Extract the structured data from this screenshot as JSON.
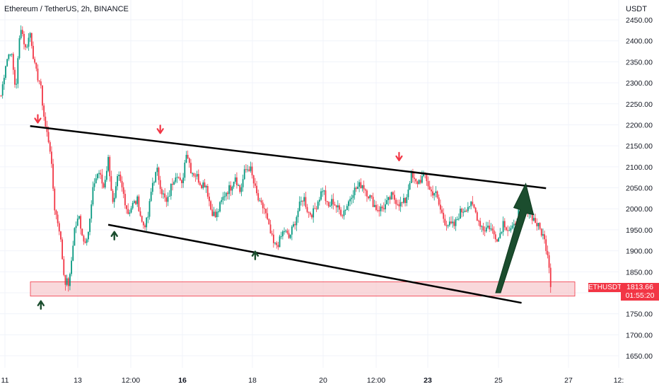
{
  "header": {
    "title": "Ethereum / TetherUS, 2h, BINANCE",
    "currency": "USDT"
  },
  "price_tag": {
    "symbol": "ETHUSDT",
    "price": "1813.66",
    "countdown": "01:55:20"
  },
  "colors": {
    "up": "#089981",
    "down": "#f23645",
    "zone_fill": "#f7c8cc",
    "zone_border": "#f23645",
    "trendline": "#000000",
    "arrow": "#1b4d2e"
  },
  "chart_data": {
    "type": "candlestick",
    "y_axis": {
      "range": [
        1625,
        2460
      ],
      "ticks": [
        1650,
        1700,
        1750,
        1800,
        1850,
        1900,
        1950,
        2000,
        2050,
        2100,
        2150,
        2200,
        2250,
        2300,
        2350,
        2400,
        2450
      ],
      "tick_labels": [
        "1650.00",
        "1700.00",
        "1750.00",
        "1800.00",
        "1850.00",
        "1900.00",
        "1950.00",
        "2000.00",
        "2050.00",
        "2100.00",
        "2150.00",
        "2200.00",
        "2250.00",
        "2300.00",
        "2350.00",
        "2400.00",
        "2450.00"
      ]
    },
    "x_axis": {
      "tick_labels": [
        {
          "label": "11",
          "bold": false
        },
        {
          "label": "13",
          "bold": false
        },
        {
          "label": "12:00",
          "bold": false
        },
        {
          "label": "16",
          "bold": true
        },
        {
          "label": "18",
          "bold": false
        },
        {
          "label": "20",
          "bold": false
        },
        {
          "label": "12:00",
          "bold": false
        },
        {
          "label": "23",
          "bold": true
        },
        {
          "label": "25",
          "bold": false
        },
        {
          "label": "27",
          "bold": false
        },
        {
          "label": "12:",
          "bold": false
        }
      ]
    },
    "candle_path": [
      [
        2270,
        2350
      ],
      [
        2380,
        2280
      ],
      [
        2440,
        2380
      ],
      [
        2420,
        2330
      ],
      [
        2300,
        2200
      ],
      [
        2150,
        2000
      ],
      [
        1950,
        1830
      ],
      [
        1820,
        1950
      ],
      [
        1980,
        1920
      ],
      [
        1950,
        2060
      ],
      [
        2090,
        2050
      ],
      [
        2120,
        2000
      ],
      [
        2080,
        2040
      ],
      [
        1990,
        2010
      ],
      [
        2020,
        1960
      ],
      [
        1970,
        2060
      ],
      [
        2090,
        2040
      ],
      [
        2010,
        2060
      ],
      [
        2090,
        2050
      ],
      [
        2140,
        2090
      ],
      [
        2080,
        2060
      ],
      [
        2060,
        2000
      ],
      [
        1980,
        2010
      ],
      [
        2040,
        2050
      ],
      [
        2080,
        2040
      ],
      [
        2090,
        2100
      ],
      [
        2050,
        2010
      ],
      [
        2000,
        1950
      ],
      [
        1910,
        1920
      ],
      [
        1950,
        1930
      ],
      [
        1960,
        2000
      ],
      [
        2030,
        1990
      ],
      [
        1990,
        2020
      ],
      [
        2050,
        2000
      ],
      [
        2020,
        2000
      ],
      [
        1990,
        2010
      ],
      [
        2040,
        2050
      ],
      [
        2060,
        2040
      ],
      [
        2020,
        2000
      ],
      [
        2000,
        2010
      ],
      [
        2030,
        2020
      ],
      [
        2010,
        2020
      ],
      [
        2080,
        2060
      ],
      [
        2070,
        2080
      ],
      [
        2040,
        2040
      ],
      [
        2000,
        1970
      ],
      [
        1960,
        1960
      ],
      [
        1990,
        2000
      ],
      [
        2010,
        2000
      ],
      [
        1970,
        1950
      ],
      [
        1960,
        1940
      ],
      [
        1930,
        1970
      ],
      [
        1950,
        1950
      ],
      [
        1990,
        1990
      ],
      [
        2000,
        1980
      ],
      [
        1960,
        1940
      ],
      [
        1900,
        1813.66
      ]
    ],
    "support_zone": {
      "low": 1792,
      "high": 1826
    },
    "annotations": {
      "upper_trendline": {
        "from": {
          "candle": 19,
          "price": 2197
        },
        "to": {
          "candle": 356,
          "price": 2049
        }
      },
      "lower_trendline": {
        "from": {
          "candle": 70,
          "price": 1962
        },
        "to": {
          "candle": 340,
          "price": 1776
        }
      },
      "arrows_down": [
        {
          "candle": 24,
          "price": 2205
        },
        {
          "candle": 104,
          "price": 2180
        },
        {
          "candle": 260,
          "price": 2115
        }
      ],
      "arrows_up": [
        {
          "candle": 26,
          "price": 1770
        },
        {
          "candle": 74,
          "price": 1935
        },
        {
          "candle": 166,
          "price": 1888
        }
      ],
      "projection_arrow": {
        "from": {
          "candle": 324,
          "price": 1800
        },
        "to": {
          "candle": 340,
          "price": 2060
        }
      }
    }
  }
}
